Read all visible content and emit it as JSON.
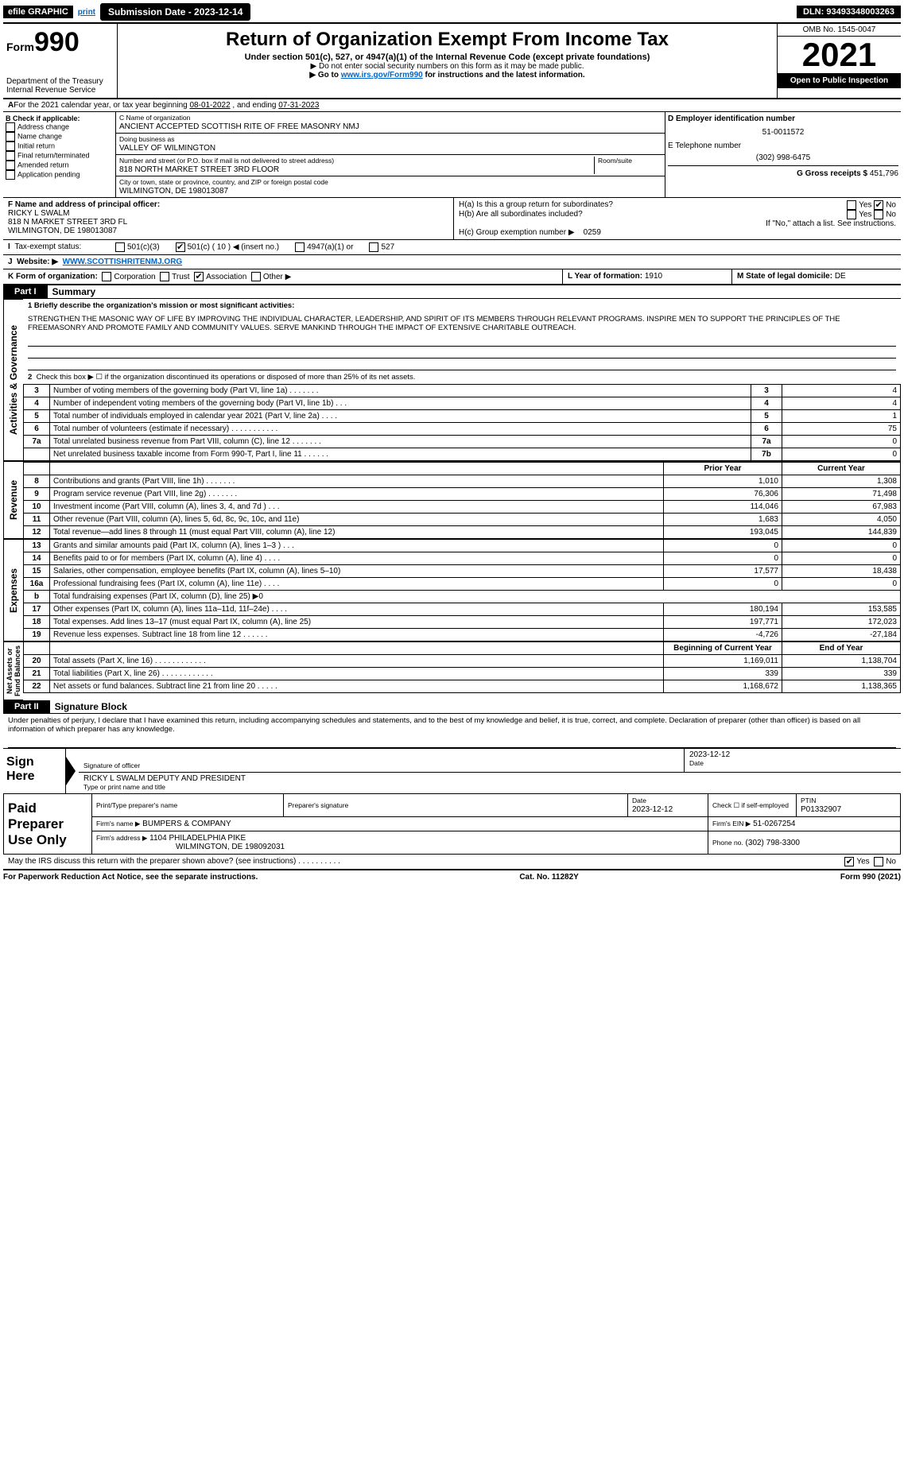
{
  "topbar": {
    "efile": "efile GRAPHIC",
    "print": "print",
    "submission": "Submission Date - 2023-12-14",
    "dln": "DLN: 93493348003263"
  },
  "header": {
    "form_label": "Form",
    "form_num": "990",
    "title": "Return of Organization Exempt From Income Tax",
    "subtitle": "Under section 501(c), 527, or 4947(a)(1) of the Internal Revenue Code (except private foundations)",
    "note1": "▶ Do not enter social security numbers on this form as it may be made public.",
    "note2_pre": "▶ Go to ",
    "note2_link": "www.irs.gov/Form990",
    "note2_post": " for instructions and the latest information.",
    "dept": "Department of the Treasury",
    "irs": "Internal Revenue Service",
    "omb": "OMB No. 1545-0047",
    "year": "2021",
    "open": "Open to Public Inspection"
  },
  "A": {
    "text_pre": "For the 2021 calendar year, or tax year beginning ",
    "begin": "08-01-2022",
    "mid": " , and ending ",
    "end": "07-31-2023"
  },
  "B": {
    "label": "B Check if applicable:",
    "items": [
      "Address change",
      "Name change",
      "Initial return",
      "Final return/terminated",
      "Amended return",
      "Application pending"
    ]
  },
  "C": {
    "name_lbl": "C Name of organization",
    "name": "ANCIENT ACCEPTED SCOTTISH RITE OF FREE MASONRY NMJ",
    "dba_lbl": "Doing business as",
    "dba": "VALLEY OF WILMINGTON",
    "addr_lbl": "Number and street (or P.O. box if mail is not delivered to street address)",
    "addr": "818 NORTH MARKET STREET 3RD FLOOR",
    "room_lbl": "Room/suite",
    "city_lbl": "City or town, state or province, country, and ZIP or foreign postal code",
    "city": "WILMINGTON, DE  198013087"
  },
  "D": {
    "lbl": "D Employer identification number",
    "val": "51-0011572"
  },
  "E": {
    "lbl": "E Telephone number",
    "val": "(302) 998-6475"
  },
  "G": {
    "lbl": "G Gross receipts $",
    "val": "451,796"
  },
  "F": {
    "lbl": "F Name and address of principal officer:",
    "name": "RICKY L SWALM",
    "addr1": "818 N MARKET STREET 3RD FL",
    "addr2": "WILMINGTON, DE  198013087"
  },
  "H": {
    "a": "H(a)  Is this a group return for subordinates?",
    "b": "H(b)  Are all subordinates included?",
    "b_note": "If \"No,\" attach a list. See instructions.",
    "c": "H(c)  Group exemption number ▶",
    "c_val": "0259"
  },
  "I": {
    "lbl": "Tax-exempt status:",
    "opts": [
      "501(c)(3)",
      "501(c) ( 10 ) ◀ (insert no.)",
      "4947(a)(1) or",
      "527"
    ]
  },
  "J": {
    "lbl": "Website: ▶",
    "val": "WWW.SCOTTISHRITENMJ.ORG"
  },
  "K": {
    "lbl": "K Form of organization:",
    "opts": [
      "Corporation",
      "Trust",
      "Association",
      "Other ▶"
    ]
  },
  "L": {
    "lbl": "L Year of formation:",
    "val": "1910"
  },
  "M": {
    "lbl": "M State of legal domicile:",
    "val": "DE"
  },
  "part1": {
    "hdr": "Part I",
    "title": "Summary",
    "line1_lbl": "1 Briefly describe the organization's mission or most significant activities:",
    "line1_txt": "STRENGTHEN THE MASONIC WAY OF LIFE BY IMPROVING THE INDIVIDUAL CHARACTER, LEADERSHIP, AND SPIRIT OF ITS MEMBERS THROUGH RELEVANT PROGRAMS. INSPIRE MEN TO SUPPORT THE PRINCIPLES OF THE FREEMASONRY AND PROMOTE FAMILY AND COMMUNITY VALUES. SERVE MANKIND THROUGH THE IMPACT OF EXTENSIVE CHARITABLE OUTREACH.",
    "line2": "Check this box ▶ ☐ if the organization discontinued its operations or disposed of more than 25% of its net assets.",
    "gov_rows": [
      {
        "n": "3",
        "d": "Number of voting members of the governing body (Part VI, line 1a)   .    .    .    .    .    .    .",
        "b": "3",
        "v": "4"
      },
      {
        "n": "4",
        "d": "Number of independent voting members of the governing body (Part VI, line 1b)    .    .    .",
        "b": "4",
        "v": "4"
      },
      {
        "n": "5",
        "d": "Total number of individuals employed in calendar year 2021 (Part V, line 2a)    .    .    .    .",
        "b": "5",
        "v": "1"
      },
      {
        "n": "6",
        "d": "Total number of volunteers (estimate if necessary)    .    .    .    .    .    .    .    .    .    .    .",
        "b": "6",
        "v": "75"
      },
      {
        "n": "7a",
        "d": "Total unrelated business revenue from Part VIII, column (C), line 12   .    .    .    .    .    .    .",
        "b": "7a",
        "v": "0"
      },
      {
        "n": "",
        "d": "Net unrelated business taxable income from Form 990-T, Part I, line 11   .    .    .    .    .    .",
        "b": "7b",
        "v": "0"
      }
    ],
    "col_prior": "Prior Year",
    "col_curr": "Current Year",
    "rev_rows": [
      {
        "n": "8",
        "d": "Contributions and grants (Part VIII, line 1h)   .    .    .    .    .    .    .",
        "p": "1,010",
        "c": "1,308"
      },
      {
        "n": "9",
        "d": "Program service revenue (Part VIII, line 2g)   .    .    .    .    .    .    .",
        "p": "76,306",
        "c": "71,498"
      },
      {
        "n": "10",
        "d": "Investment income (Part VIII, column (A), lines 3, 4, and 7d )   .    .    .",
        "p": "114,046",
        "c": "67,983"
      },
      {
        "n": "11",
        "d": "Other revenue (Part VIII, column (A), lines 5, 6d, 8c, 9c, 10c, and 11e)",
        "p": "1,683",
        "c": "4,050"
      },
      {
        "n": "12",
        "d": "Total revenue—add lines 8 through 11 (must equal Part VIII, column (A), line 12)",
        "p": "193,045",
        "c": "144,839"
      }
    ],
    "exp_rows": [
      {
        "n": "13",
        "d": "Grants and similar amounts paid (Part IX, column (A), lines 1–3 )   .    .    .",
        "p": "0",
        "c": "0"
      },
      {
        "n": "14",
        "d": "Benefits paid to or for members (Part IX, column (A), line 4)   .    .    .    .",
        "p": "0",
        "c": "0"
      },
      {
        "n": "15",
        "d": "Salaries, other compensation, employee benefits (Part IX, column (A), lines 5–10)",
        "p": "17,577",
        "c": "18,438"
      },
      {
        "n": "16a",
        "d": "Professional fundraising fees (Part IX, column (A), line 11e)   .    .    .    .",
        "p": "0",
        "c": "0"
      },
      {
        "n": "b",
        "d": "Total fundraising expenses (Part IX, column (D), line 25) ▶0",
        "p": "",
        "c": ""
      },
      {
        "n": "17",
        "d": "Other expenses (Part IX, column (A), lines 11a–11d, 11f–24e)   .    .    .    .",
        "p": "180,194",
        "c": "153,585"
      },
      {
        "n": "18",
        "d": "Total expenses. Add lines 13–17 (must equal Part IX, column (A), line 25)",
        "p": "197,771",
        "c": "172,023"
      },
      {
        "n": "19",
        "d": "Revenue less expenses. Subtract line 18 from line 12   .    .    .    .    .    .",
        "p": "-4,726",
        "c": "-27,184"
      }
    ],
    "col_begin": "Beginning of Current Year",
    "col_end": "End of Year",
    "net_rows": [
      {
        "n": "20",
        "d": "Total assets (Part X, line 16)   .    .    .    .    .    .    .    .    .    .    .    .",
        "p": "1,169,011",
        "c": "1,138,704"
      },
      {
        "n": "21",
        "d": "Total liabilities (Part X, line 26)   .    .    .    .    .    .    .    .    .    .    .    .",
        "p": "339",
        "c": "339"
      },
      {
        "n": "22",
        "d": "Net assets or fund balances. Subtract line 21 from line 20   .    .    .    .    .",
        "p": "1,168,672",
        "c": "1,138,365"
      }
    ]
  },
  "part2": {
    "hdr": "Part II",
    "title": "Signature Block",
    "decl": "Under penalties of perjury, I declare that I have examined this return, including accompanying schedules and statements, and to the best of my knowledge and belief, it is true, correct, and complete. Declaration of preparer (other than officer) is based on all information of which preparer has any knowledge."
  },
  "sign": {
    "here": "Sign Here",
    "sig_lbl": "Signature of officer",
    "date_lbl": "Date",
    "date": "2023-12-12",
    "name": "RICKY L SWALM  DEPUTY AND PRESIDENT",
    "name_lbl": "Type or print name and title"
  },
  "paid": {
    "hdr": "Paid Preparer Use Only",
    "r1": {
      "c1": "Print/Type preparer's name",
      "c2": "Preparer's signature",
      "c3": "Date",
      "c3v": "2023-12-12",
      "c4": "Check ☐ if self-employed",
      "c5": "PTIN",
      "c5v": "P01332907"
    },
    "r2": {
      "c1": "Firm's name      ▶",
      "c1v": "BUMPERS & COMPANY",
      "c2": "Firm's EIN ▶",
      "c2v": "51-0267254"
    },
    "r3": {
      "c1": "Firm's address ▶",
      "c1v": "1104 PHILADELPHIA PIKE",
      "c1v2": "WILMINGTON, DE  198092031",
      "c2": "Phone no.",
      "c2v": "(302) 798-3300"
    },
    "discuss": "May the IRS discuss this return with the preparer shown above? (see instructions)   .    .    .    .    .    .    .    .    .    ."
  },
  "footer": {
    "left": "For Paperwork Reduction Act Notice, see the separate instructions.",
    "mid": "Cat. No. 11282Y",
    "right": "Form 990 (2021)"
  }
}
